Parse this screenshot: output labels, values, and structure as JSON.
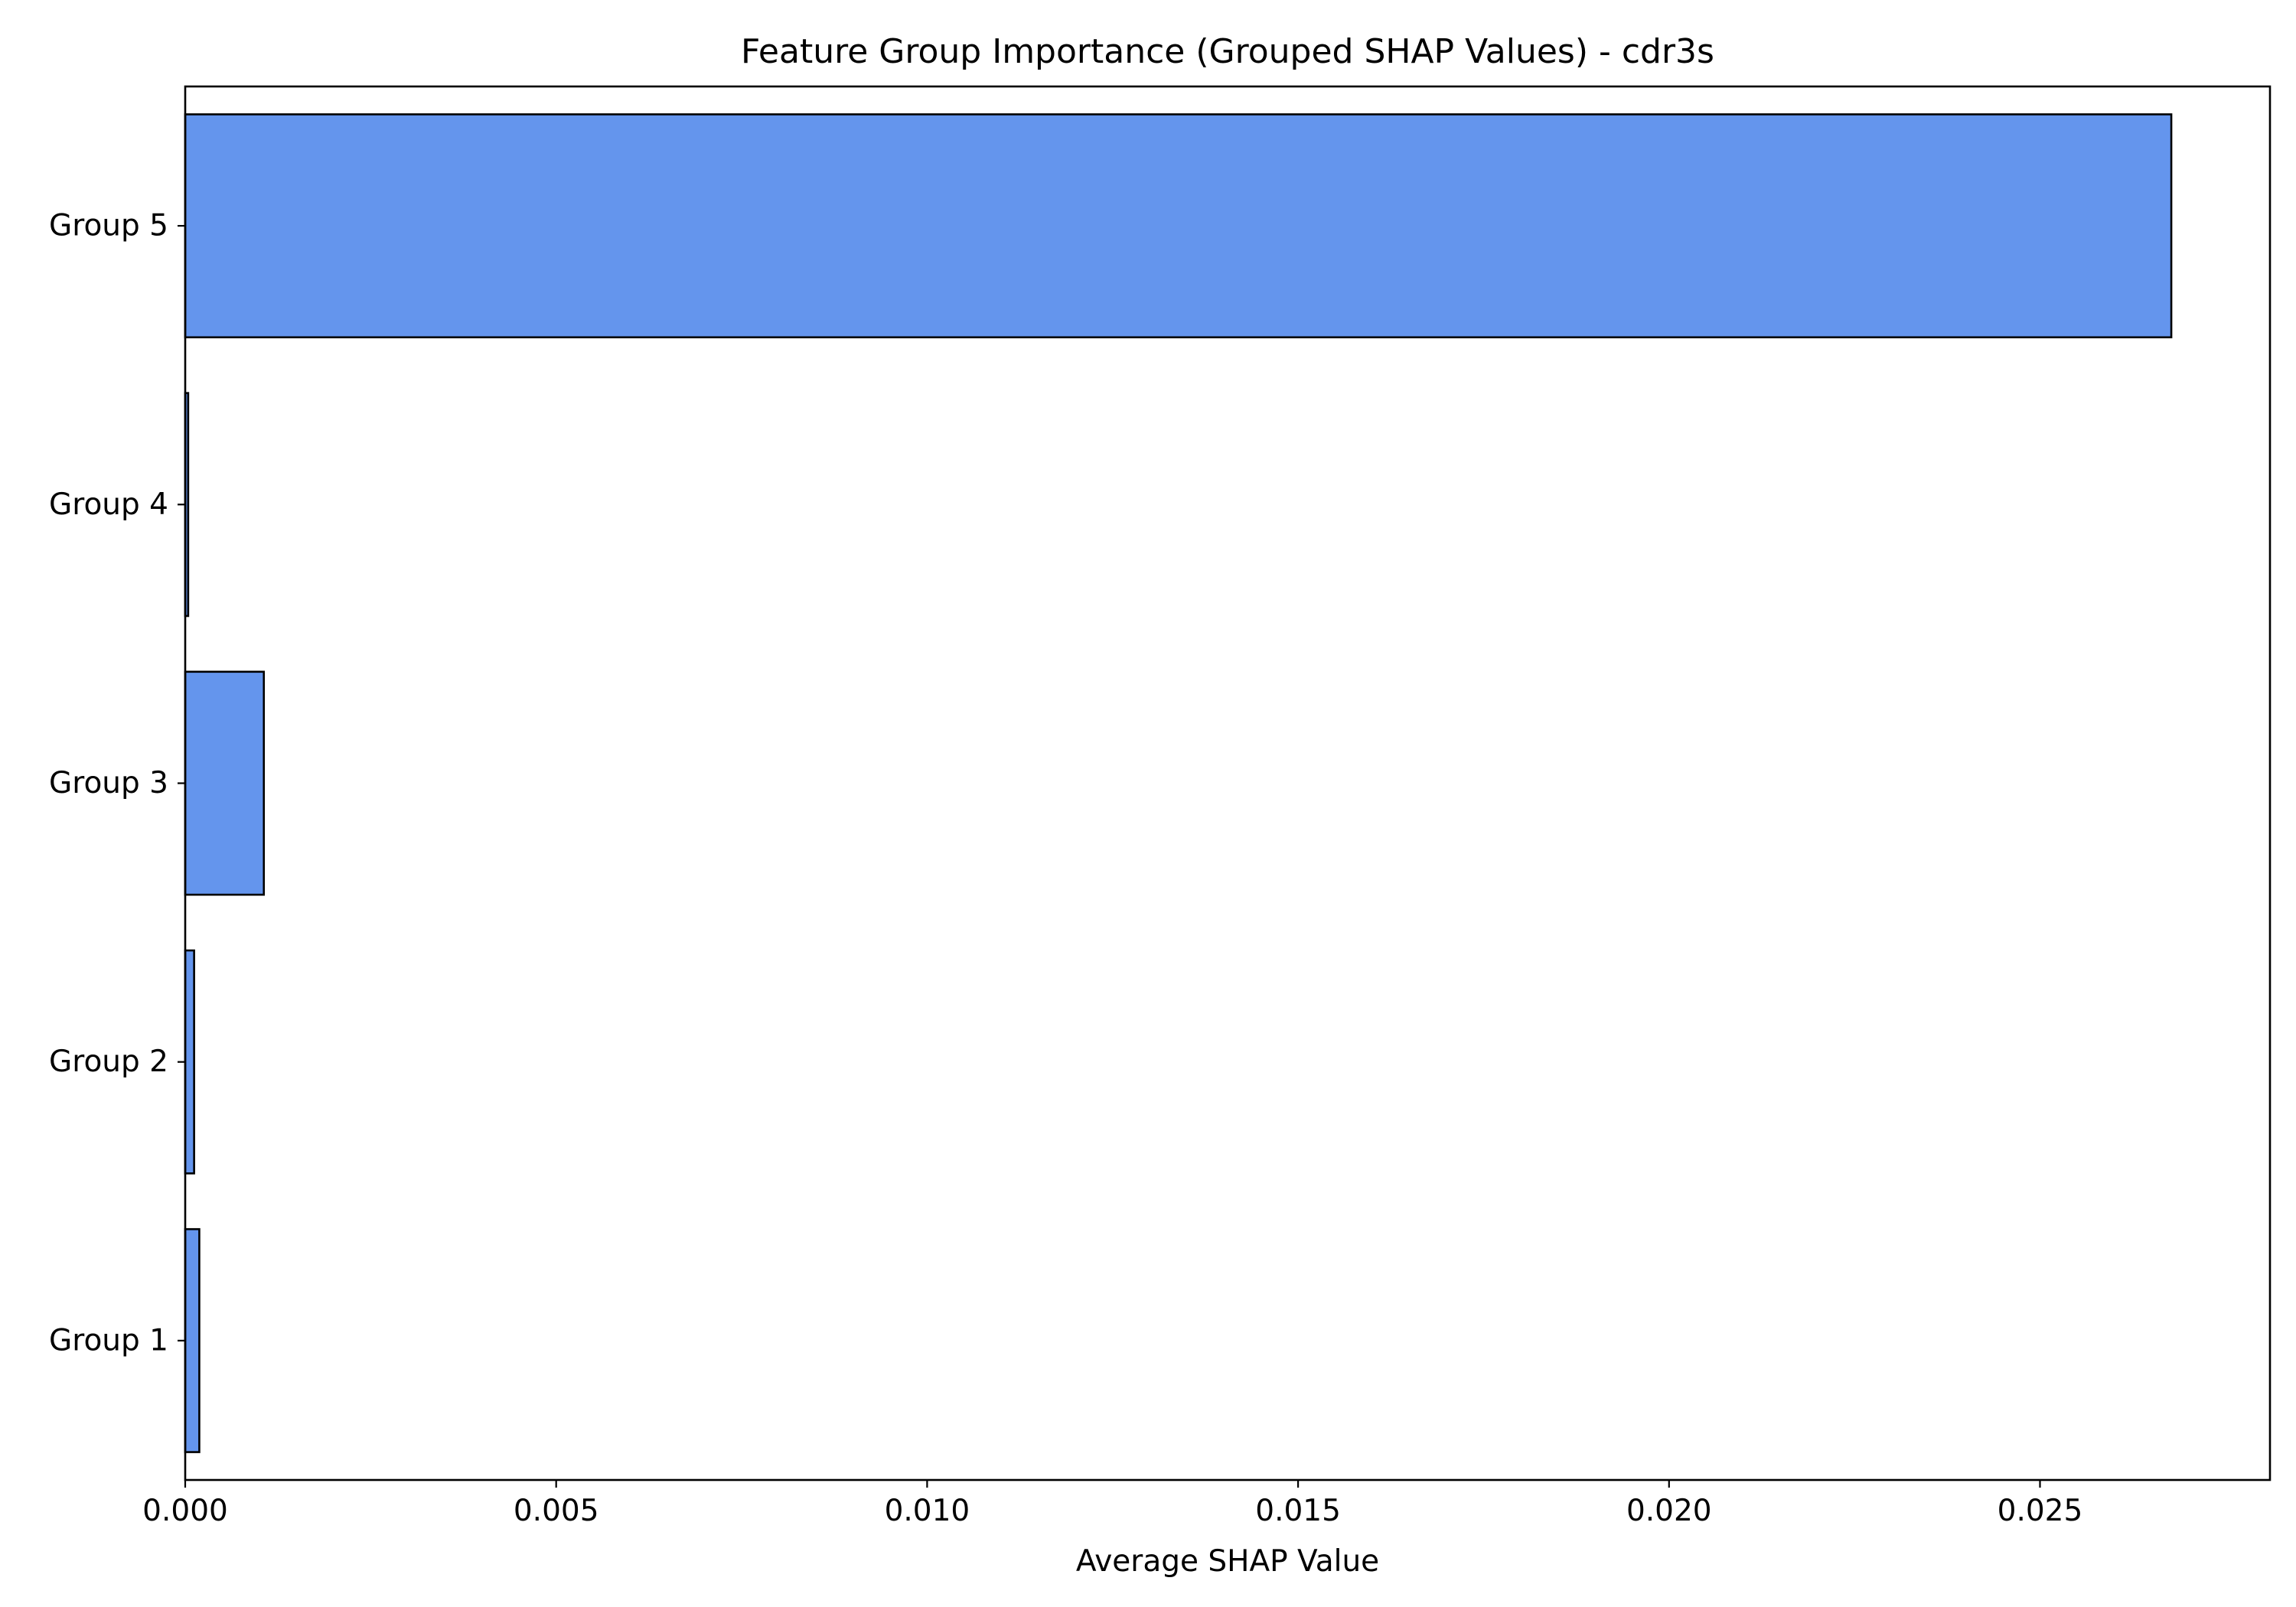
{
  "chart_data": {
    "type": "bar",
    "orientation": "horizontal",
    "title": "Feature Group Importance (Grouped SHAP Values) - cdr3s",
    "xlabel": "Average SHAP Value",
    "ylabel": "",
    "categories": [
      "Group 1",
      "Group 2",
      "Group 3",
      "Group 4",
      "Group 5"
    ],
    "values": [
      0.00019,
      0.00012,
      0.00106,
      4e-05,
      0.02677
    ],
    "xlim": [
      0,
      0.0281
    ],
    "xticks": [
      0.0,
      0.005,
      0.01,
      0.015,
      0.02,
      0.025
    ],
    "xtick_labels": [
      "0.000",
      "0.005",
      "0.010",
      "0.015",
      "0.020",
      "0.025"
    ],
    "grid": false,
    "legend": "none",
    "colors": {
      "bar_fill": "#6495ED",
      "bar_edge": "#000000",
      "axes": "#000000",
      "text": "#000000"
    }
  }
}
